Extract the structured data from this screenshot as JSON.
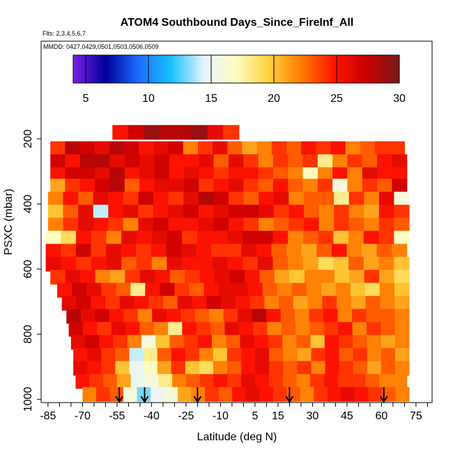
{
  "chart_data": {
    "type": "heatmap",
    "title": "ATOM4 Southbound Days_Since_FireInf_All",
    "flights_note": "Flts: 2,3,4,5,6,7",
    "dates_note": "MMDD: 0427,0429,0501,0503,0506,0509",
    "xlabel": "Latitude (deg N)",
    "ylabel": "PSXC (mbar)",
    "xlim": [
      -88,
      82
    ],
    "ylim": [
      1010,
      -100
    ],
    "x_tick_labels": [
      "-85",
      "-70",
      "-55",
      "-40",
      "-25",
      "-10",
      "5",
      "15",
      "30",
      "45",
      "60",
      "75"
    ],
    "x_tick_values": [
      -85,
      -70,
      -55,
      -40,
      -25,
      -10,
      5,
      15,
      30,
      45,
      60,
      75
    ],
    "x_minor_ticks": [
      -85,
      -80,
      -75,
      -70,
      -65,
      -60,
      -55,
      -50,
      -45,
      -40,
      -35,
      -30,
      -25,
      -20,
      -15,
      -10,
      -5,
      0,
      5,
      10,
      15,
      20,
      25,
      30,
      35,
      40,
      45,
      50,
      55,
      60,
      65,
      70,
      75,
      80
    ],
    "y_tick_labels": [
      "200",
      "400",
      "600",
      "800",
      "1000"
    ],
    "y_tick_values": [
      200,
      400,
      600,
      800,
      1000
    ],
    "colorbar": {
      "min": 4,
      "max": 30,
      "tick_labels": [
        "5",
        "10",
        "15",
        "20",
        "25",
        "30"
      ],
      "tick_values": [
        5,
        10,
        15,
        20,
        25,
        30
      ],
      "colors": [
        "#7b1fe8",
        "#00009a",
        "#1c6dff",
        "#18c0ff",
        "#e6f4ff",
        "#fffcc2",
        "#ffd23c",
        "#ff7a00",
        "#ff1400",
        "#c80000",
        "#7a1a1a"
      ]
    },
    "profile_arrows_lat": [
      -54,
      -43,
      -20,
      20,
      61
    ],
    "layers": [
      {
        "pressure": 180,
        "lat_range": [
          -57,
          -2
        ],
        "values": [
          25,
          27,
          29,
          28,
          28,
          29,
          26,
          24
        ]
      },
      {
        "pressure": 230,
        "lat_range": [
          -84,
          70
        ],
        "values": [
          24,
          28,
          27,
          26,
          28,
          27,
          25,
          26,
          27,
          22,
          24,
          26,
          23,
          21,
          22,
          24,
          23,
          25,
          24,
          25,
          22,
          23,
          24,
          24
        ]
      },
      {
        "pressure": 270,
        "lat_range": [
          -84,
          71
        ],
        "values": [
          27,
          25,
          28,
          28,
          26,
          27,
          26,
          27,
          25,
          25,
          26,
          23,
          26,
          24,
          22,
          24,
          23,
          24,
          18,
          22,
          24,
          23,
          25,
          26
        ]
      },
      {
        "pressure": 310,
        "lat_range": [
          -84,
          71
        ],
        "values": [
          25,
          27,
          27,
          26,
          28,
          25,
          26,
          27,
          25,
          26,
          25,
          24,
          25,
          25,
          24,
          23,
          22,
          17,
          22,
          25,
          22,
          26,
          25,
          25
        ]
      },
      {
        "pressure": 345,
        "lat_range": [
          -84,
          71
        ],
        "values": [
          21,
          24,
          25,
          27,
          28,
          23,
          25,
          26,
          26,
          27,
          24,
          25,
          26,
          24,
          23,
          25,
          23,
          22,
          24,
          16,
          22,
          24,
          23,
          27
        ]
      },
      {
        "pressure": 385,
        "lat_range": [
          -85,
          72
        ],
        "values": [
          22,
          25,
          23,
          26,
          25,
          24,
          27,
          25,
          24,
          26,
          28,
          27,
          24,
          23,
          25,
          26,
          22,
          23,
          23,
          18,
          24,
          22,
          26,
          16
        ]
      },
      {
        "pressure": 425,
        "lat_range": [
          -85,
          72
        ],
        "values": [
          20,
          23,
          26,
          14,
          25,
          26,
          24,
          25,
          26,
          27,
          25,
          26,
          27,
          27,
          26,
          24,
          25,
          23,
          22,
          24,
          22,
          21,
          25,
          24
        ]
      },
      {
        "pressure": 465,
        "lat_range": [
          -85,
          72
        ],
        "values": [
          22,
          24,
          26,
          25,
          24,
          22,
          26,
          27,
          25,
          25,
          26,
          27,
          25,
          24,
          22,
          23,
          24,
          25,
          22,
          24,
          23,
          22,
          24,
          23
        ]
      },
      {
        "pressure": 505,
        "lat_range": [
          -86,
          72
        ],
        "values": [
          17,
          19,
          25,
          24,
          22,
          26,
          25,
          26,
          27,
          24,
          25,
          25,
          26,
          27,
          27,
          25,
          22,
          23,
          24,
          20,
          22,
          25,
          24,
          17
        ]
      },
      {
        "pressure": 545,
        "lat_range": [
          -86,
          71
        ],
        "values": [
          25,
          24,
          27,
          24,
          26,
          25,
          24,
          25,
          27,
          26,
          25,
          24,
          24,
          26,
          25,
          23,
          22,
          21,
          23,
          25,
          22,
          21,
          23,
          22
        ]
      },
      {
        "pressure": 585,
        "lat_range": [
          -86,
          72
        ],
        "values": [
          26,
          25,
          24,
          25,
          26,
          23,
          24,
          22,
          26,
          25,
          25,
          26,
          25,
          24,
          26,
          23,
          22,
          21,
          19,
          20,
          23,
          21,
          22,
          20
        ]
      },
      {
        "pressure": 625,
        "lat_range": [
          -84,
          72
        ],
        "values": [
          24,
          26,
          25,
          22,
          21,
          24,
          26,
          25,
          23,
          24,
          25,
          26,
          27,
          25,
          23,
          21,
          20,
          22,
          22,
          20,
          21,
          24,
          21,
          19
        ]
      },
      {
        "pressure": 665,
        "lat_range": [
          -81,
          72
        ],
        "values": [
          25,
          27,
          26,
          24,
          23,
          18,
          25,
          27,
          24,
          23,
          25,
          26,
          26,
          25,
          23,
          22,
          23,
          22,
          21,
          22,
          20,
          19,
          22,
          20
        ]
      },
      {
        "pressure": 705,
        "lat_range": [
          -79,
          72
        ],
        "values": [
          26,
          27,
          25,
          24,
          26,
          25,
          24,
          23,
          26,
          25,
          27,
          26,
          25,
          24,
          22,
          23,
          21,
          22,
          24,
          22,
          21,
          23,
          22,
          21
        ]
      },
      {
        "pressure": 745,
        "lat_range": [
          -77,
          72
        ],
        "values": [
          28,
          26,
          27,
          25,
          24,
          22,
          26,
          25,
          24,
          23,
          22,
          24,
          26,
          28,
          25,
          23,
          22,
          24,
          25,
          22,
          24,
          23,
          23,
          22
        ]
      },
      {
        "pressure": 785,
        "lat_range": [
          -76,
          72
        ],
        "values": [
          27,
          25,
          24,
          26,
          25,
          23,
          22,
          18,
          25,
          24,
          23,
          26,
          25,
          24,
          22,
          23,
          22,
          23,
          24,
          25,
          22,
          24,
          23,
          22
        ]
      },
      {
        "pressure": 825,
        "lat_range": [
          -75,
          72
        ],
        "values": [
          26,
          27,
          25,
          24,
          22,
          16,
          20,
          23,
          24,
          25,
          22,
          23,
          26,
          25,
          24,
          22,
          23,
          20,
          25,
          24,
          23,
          22,
          21,
          22
        ]
      },
      {
        "pressure": 865,
        "lat_range": [
          -74,
          72
        ],
        "values": [
          25,
          26,
          24,
          23,
          14,
          18,
          23,
          25,
          24,
          22,
          20,
          24,
          25,
          26,
          23,
          22,
          21,
          24,
          25,
          23,
          24,
          22,
          23,
          21
        ]
      },
      {
        "pressure": 905,
        "lat_range": [
          -74,
          72
        ],
        "values": [
          26,
          25,
          24,
          20,
          15,
          17,
          21,
          24,
          20,
          19,
          22,
          23,
          25,
          26,
          24,
          23,
          24,
          22,
          25,
          24,
          23,
          21,
          23,
          22
        ]
      },
      {
        "pressure": 945,
        "lat_range": [
          -73,
          71
        ],
        "values": [
          25,
          24,
          23,
          21,
          15,
          16,
          18,
          22,
          23,
          24,
          25,
          24,
          26,
          25,
          24,
          23,
          22,
          24,
          25,
          24,
          24,
          23,
          22,
          22
        ]
      },
      {
        "pressure": 985,
        "lat_range": [
          -70,
          72
        ],
        "values": [
          22,
          24,
          23,
          16,
          13,
          15,
          16,
          21,
          22,
          24,
          23,
          25,
          26,
          25,
          24,
          23,
          22,
          24,
          25,
          26,
          25,
          24,
          23,
          22
        ]
      }
    ]
  }
}
